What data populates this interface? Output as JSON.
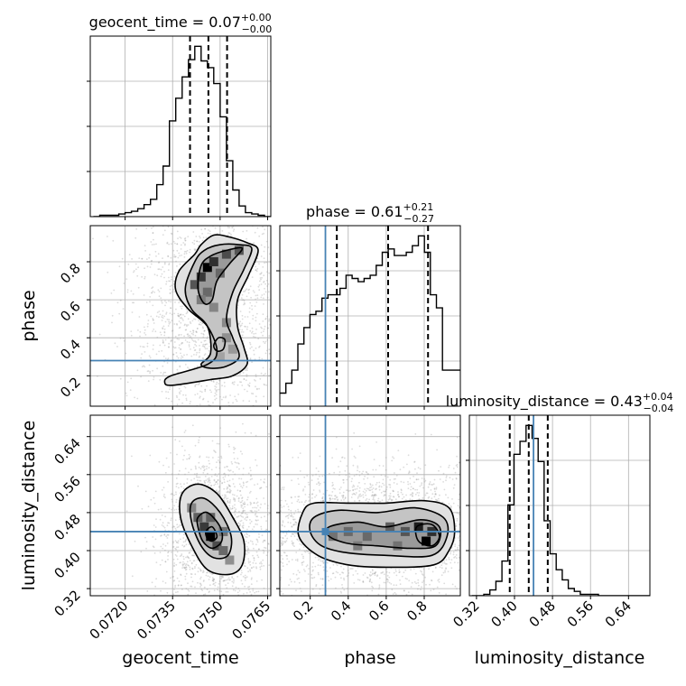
{
  "chart_data": {
    "type": "corner",
    "parameters": [
      "geocent_time",
      "phase",
      "luminosity_distance"
    ],
    "truths": {
      "geocent_time": null,
      "phase": 0.28,
      "luminosity_distance": 0.44
    },
    "colors": {
      "truth": "#4682b4",
      "hist": "#000000",
      "grid": "#b0b0b0",
      "points": "#9a9a9a"
    },
    "grid": true,
    "axes": [
      {
        "name": "geocent_time",
        "label": "geocent_time",
        "lim": [
          0.0709,
          0.0766
        ],
        "ticks": [
          0.072,
          0.0735,
          0.075,
          0.0765
        ],
        "tick_labels": [
          "0.0720",
          "0.0735",
          "0.0750",
          "0.0765"
        ]
      },
      {
        "name": "phase",
        "label": "phase",
        "lim": [
          0.04,
          0.99
        ],
        "ticks": [
          0.2,
          0.4,
          0.6,
          0.8
        ],
        "tick_labels": [
          "0.2",
          "0.4",
          "0.6",
          "0.8"
        ]
      },
      {
        "name": "luminosity_distance",
        "label": "luminosity_distance",
        "lim": [
          0.305,
          0.685
        ],
        "ticks": [
          0.32,
          0.4,
          0.48,
          0.56,
          0.64
        ],
        "tick_labels": [
          "0.32",
          "0.40",
          "0.48",
          "0.56",
          "0.64"
        ]
      }
    ],
    "diagonal": [
      {
        "param": "geocent_time",
        "title_main": "geocent_time = 0.07",
        "title_sup": "+0.00",
        "title_sub": "−0.00",
        "quantiles": [
          0.07405,
          0.07463,
          0.07522
        ],
        "bins": {
          "start": 0.071,
          "width": 0.0002,
          "counts": [
            0,
            1,
            1,
            1,
            2,
            3,
            4,
            6,
            9,
            13,
            24,
            38,
            72,
            89,
            105,
            118,
            128,
            117,
            112,
            100,
            75,
            42,
            20,
            8,
            3,
            2,
            1,
            0
          ]
        }
      },
      {
        "param": "phase",
        "title_main": "phase = 0.61",
        "title_sup": "+0.21",
        "title_sub": "−0.27",
        "quantiles": [
          0.34,
          0.61,
          0.82
        ],
        "bins": {
          "start": 0.04,
          "width": 0.0317,
          "counts": [
            4,
            7,
            11,
            19,
            24,
            28,
            29,
            33,
            34,
            34,
            36,
            40,
            39,
            38,
            39,
            40,
            43,
            47,
            48,
            46,
            46,
            47,
            49,
            52,
            47,
            34,
            30,
            11,
            11,
            11
          ]
        }
      },
      {
        "param": "luminosity_distance",
        "title_main": "luminosity_distance = 0.43",
        "title_sup": "+0.04",
        "title_sub": "−0.04",
        "quantiles": [
          0.39,
          0.43,
          0.47
        ],
        "bins": {
          "start": 0.31,
          "width": 0.0127,
          "counts": [
            0,
            0,
            1,
            4,
            10,
            24,
            63,
            98,
            107,
            118,
            109,
            93,
            52,
            29,
            18,
            11,
            5,
            3,
            1,
            1,
            1,
            0,
            0,
            0,
            0,
            0,
            0,
            0,
            0,
            0
          ]
        }
      }
    ],
    "pairs": [
      {
        "x": "geocent_time",
        "y": "phase",
        "contours": [
          [
            [
              0.0742,
              0.84
            ],
            [
              0.0744,
              0.89
            ],
            [
              0.0748,
              0.94
            ],
            [
              0.0753,
              0.93
            ],
            [
              0.07585,
              0.9
            ],
            [
              0.0762,
              0.86
            ],
            [
              0.0759,
              0.73
            ],
            [
              0.07555,
              0.6
            ],
            [
              0.07555,
              0.46
            ],
            [
              0.07575,
              0.35
            ],
            [
              0.07585,
              0.26
            ],
            [
              0.0754,
              0.2
            ],
            [
              0.0747,
              0.18
            ],
            [
              0.0735,
              0.15
            ],
            [
              0.07325,
              0.165
            ],
            [
              0.07345,
              0.2
            ],
            [
              0.0746,
              0.26
            ],
            [
              0.0749,
              0.33
            ],
            [
              0.0746,
              0.46
            ],
            [
              0.074,
              0.55
            ],
            [
              0.0736,
              0.65
            ],
            [
              0.0737,
              0.75
            ]
          ],
          [
            [
              0.0742,
              0.8
            ],
            [
              0.0745,
              0.86
            ],
            [
              0.075,
              0.89
            ],
            [
              0.0756,
              0.89
            ],
            [
              0.076,
              0.87
            ],
            [
              0.07575,
              0.76
            ],
            [
              0.0754,
              0.64
            ],
            [
              0.0752,
              0.5
            ],
            [
              0.0754,
              0.4
            ],
            [
              0.0756,
              0.3
            ],
            [
              0.0752,
              0.25
            ],
            [
              0.0747,
              0.24
            ],
            [
              0.0744,
              0.26
            ],
            [
              0.0747,
              0.32
            ],
            [
              0.0746,
              0.46
            ],
            [
              0.0741,
              0.55
            ],
            [
              0.0739,
              0.66
            ]
          ],
          [
            [
              0.0744,
              0.78
            ],
            [
              0.0747,
              0.83
            ],
            [
              0.0752,
              0.86
            ],
            [
              0.0757,
              0.87
            ],
            [
              0.0753,
              0.79
            ],
            [
              0.0749,
              0.7
            ],
            [
              0.07475,
              0.6
            ],
            [
              0.0745,
              0.58
            ],
            [
              0.0743,
              0.66
            ]
          ],
          [
            [
              0.0748,
              0.36
            ],
            [
              0.07495,
              0.4
            ],
            [
              0.07515,
              0.39
            ],
            [
              0.0751,
              0.34
            ],
            [
              0.0749,
              0.33
            ]
          ]
        ],
        "density": [
          [
            0.0746,
            0.77,
            1.0
          ],
          [
            0.0748,
            0.8,
            0.75
          ],
          [
            0.0744,
            0.72,
            0.7
          ],
          [
            0.0752,
            0.84,
            0.6
          ],
          [
            0.0756,
            0.86,
            0.55
          ],
          [
            0.0742,
            0.68,
            0.55
          ],
          [
            0.0746,
            0.64,
            0.45
          ],
          [
            0.075,
            0.74,
            0.45
          ],
          [
            0.0744,
            0.6,
            0.35
          ],
          [
            0.0748,
            0.56,
            0.3
          ],
          [
            0.0752,
            0.48,
            0.28
          ],
          [
            0.0752,
            0.4,
            0.25
          ],
          [
            0.0754,
            0.34,
            0.2
          ],
          [
            0.075,
            0.3,
            0.15
          ]
        ]
      },
      {
        "x": "geocent_time",
        "y": "luminosity_distance",
        "contours": [
          [
            [
              0.0738,
              0.52
            ],
            [
              0.0743,
              0.54
            ],
            [
              0.0749,
              0.52
            ],
            [
              0.0754,
              0.47
            ],
            [
              0.07575,
              0.42
            ],
            [
              0.0757,
              0.37
            ],
            [
              0.0753,
              0.35
            ],
            [
              0.0746,
              0.36
            ],
            [
              0.0741,
              0.41
            ],
            [
              0.07375,
              0.47
            ]
          ],
          [
            [
              0.0741,
              0.5
            ],
            [
              0.0745,
              0.51
            ],
            [
              0.075,
              0.48
            ],
            [
              0.07535,
              0.43
            ],
            [
              0.07525,
              0.39
            ],
            [
              0.0748,
              0.385
            ],
            [
              0.0744,
              0.41
            ],
            [
              0.0741,
              0.46
            ]
          ],
          [
            [
              0.0743,
              0.47
            ],
            [
              0.0746,
              0.48
            ],
            [
              0.075,
              0.45
            ],
            [
              0.07505,
              0.42
            ],
            [
              0.07475,
              0.405
            ],
            [
              0.07445,
              0.42
            ],
            [
              0.0743,
              0.45
            ]
          ],
          [
            [
              0.07455,
              0.44
            ],
            [
              0.07475,
              0.45
            ],
            [
              0.0749,
              0.43
            ],
            [
              0.07475,
              0.42
            ],
            [
              0.0746,
              0.425
            ]
          ]
        ],
        "density": [
          [
            0.0747,
            0.43,
            1.0
          ],
          [
            0.0745,
            0.45,
            0.7
          ],
          [
            0.0749,
            0.41,
            0.6
          ],
          [
            0.0743,
            0.47,
            0.5
          ],
          [
            0.0751,
            0.4,
            0.45
          ],
          [
            0.0747,
            0.47,
            0.5
          ],
          [
            0.0751,
            0.44,
            0.4
          ],
          [
            0.0741,
            0.49,
            0.3
          ],
          [
            0.0753,
            0.38,
            0.25
          ]
        ]
      },
      {
        "x": "phase",
        "y": "luminosity_distance",
        "contours": [
          [
            [
              0.16,
              0.48
            ],
            [
              0.22,
              0.5
            ],
            [
              0.4,
              0.5
            ],
            [
              0.6,
              0.5
            ],
            [
              0.8,
              0.505
            ],
            [
              0.93,
              0.49
            ],
            [
              0.96,
              0.44
            ],
            [
              0.93,
              0.4
            ],
            [
              0.85,
              0.37
            ],
            [
              0.6,
              0.365
            ],
            [
              0.4,
              0.37
            ],
            [
              0.24,
              0.39
            ],
            [
              0.14,
              0.43
            ]
          ],
          [
            [
              0.22,
              0.47
            ],
            [
              0.35,
              0.485
            ],
            [
              0.55,
              0.48
            ],
            [
              0.75,
              0.49
            ],
            [
              0.9,
              0.47
            ],
            [
              0.92,
              0.43
            ],
            [
              0.84,
              0.39
            ],
            [
              0.6,
              0.39
            ],
            [
              0.4,
              0.395
            ],
            [
              0.26,
              0.41
            ],
            [
              0.2,
              0.44
            ]
          ],
          [
            [
              0.3,
              0.45
            ],
            [
              0.45,
              0.46
            ],
            [
              0.6,
              0.45
            ],
            [
              0.78,
              0.465
            ],
            [
              0.88,
              0.45
            ],
            [
              0.86,
              0.41
            ],
            [
              0.72,
              0.405
            ],
            [
              0.55,
              0.41
            ],
            [
              0.4,
              0.415
            ],
            [
              0.3,
              0.43
            ]
          ],
          [
            [
              0.76,
              0.45
            ],
            [
              0.84,
              0.455
            ],
            [
              0.88,
              0.43
            ],
            [
              0.84,
              0.41
            ],
            [
              0.77,
              0.42
            ]
          ]
        ],
        "density": [
          [
            0.81,
            0.42,
            1.0
          ],
          [
            0.77,
            0.45,
            0.85
          ],
          [
            0.84,
            0.44,
            0.75
          ],
          [
            0.7,
            0.44,
            0.55
          ],
          [
            0.62,
            0.45,
            0.5
          ],
          [
            0.5,
            0.43,
            0.45
          ],
          [
            0.4,
            0.44,
            0.45
          ],
          [
            0.32,
            0.43,
            0.4
          ],
          [
            0.66,
            0.41,
            0.4
          ],
          [
            0.45,
            0.41,
            0.35
          ]
        ]
      }
    ],
    "scatter_seed": 7
  }
}
